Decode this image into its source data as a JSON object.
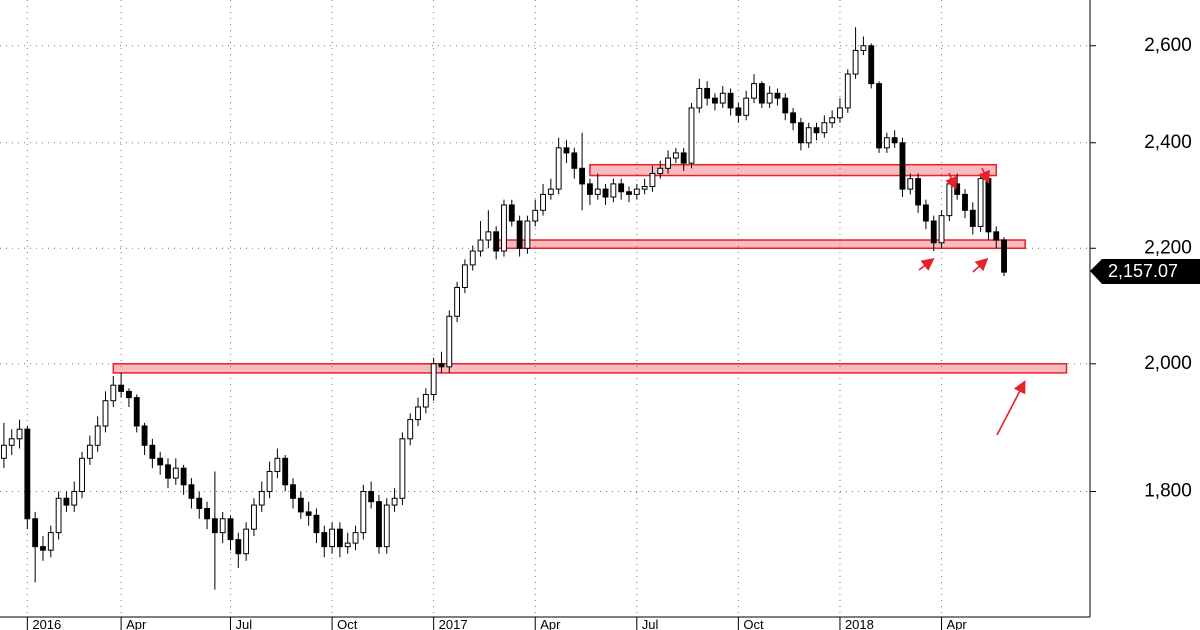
{
  "chart_data": {
    "type": "candlestick",
    "log_scale": true,
    "grid": true,
    "up_color": "#ffffff",
    "down_color": "#000000",
    "band_color": "#e8202a",
    "xlim": [
      -0.5,
      139
    ],
    "ylim": [
      1623,
      2700
    ],
    "xticks": [
      {
        "value": 3,
        "label": "2016"
      },
      {
        "value": 15,
        "label": "Apr"
      },
      {
        "value": 29,
        "label": "Jul"
      },
      {
        "value": 42,
        "label": "Oct"
      },
      {
        "value": 55,
        "label": "2017"
      },
      {
        "value": 68,
        "label": "Apr"
      },
      {
        "value": 81,
        "label": "Jul"
      },
      {
        "value": 94,
        "label": "Oct"
      },
      {
        "value": 107,
        "label": "2018"
      },
      {
        "value": 120,
        "label": "Apr"
      }
    ],
    "yticks": [
      {
        "value": 1800,
        "label": "1,800"
      },
      {
        "value": 2000,
        "label": "2,000"
      },
      {
        "value": 2200,
        "label": "2,200"
      },
      {
        "value": 2400,
        "label": "2,400"
      },
      {
        "value": 2600,
        "label": "2,600"
      }
    ],
    "open": [
      1850,
      1870,
      1880,
      1895,
      1760,
      1720,
      1715,
      1740,
      1790,
      1780,
      1800,
      1850,
      1870,
      1900,
      1940,
      1965,
      1955,
      1945,
      1900,
      1870,
      1850,
      1840,
      1820,
      1835,
      1810,
      1790,
      1775,
      1760,
      1740,
      1760,
      1730,
      1710,
      1745,
      1780,
      1800,
      1830,
      1850,
      1810,
      1790,
      1770,
      1765,
      1740,
      1720,
      1745,
      1720,
      1725,
      1740,
      1800,
      1785,
      1720,
      1780,
      1790,
      1880,
      1910,
      1930,
      1950,
      2000,
      1995,
      2080,
      2130,
      2170,
      2195,
      2215,
      2230,
      2195,
      2280,
      2250,
      2200,
      2250,
      2270,
      2300,
      2310,
      2390,
      2380,
      2350,
      2320,
      2300,
      2310,
      2295,
      2320,
      2305,
      2300,
      2310,
      2315,
      2340,
      2350,
      2370,
      2380,
      2360,
      2470,
      2510,
      2490,
      2480,
      2500,
      2470,
      2455,
      2490,
      2520,
      2480,
      2500,
      2490,
      2460,
      2440,
      2400,
      2430,
      2420,
      2440,
      2450,
      2470,
      2540,
      2590,
      2600,
      2520,
      2390,
      2410,
      2400,
      2310,
      2330,
      2280,
      2250,
      2210,
      2260,
      2320,
      2300,
      2270,
      2240,
      2330,
      2230,
      2215
    ],
    "high": [
      1905,
      1895,
      1910,
      1900,
      1770,
      1735,
      1750,
      1800,
      1800,
      1815,
      1860,
      1885,
      1915,
      1955,
      1980,
      1985,
      1960,
      1950,
      1905,
      1880,
      1860,
      1850,
      1850,
      1840,
      1820,
      1800,
      1785,
      1830,
      1770,
      1765,
      1740,
      1755,
      1790,
      1815,
      1845,
      1865,
      1855,
      1820,
      1800,
      1785,
      1775,
      1750,
      1755,
      1755,
      1740,
      1750,
      1810,
      1815,
      1795,
      1790,
      1805,
      1890,
      1920,
      1945,
      1960,
      2010,
      2020,
      2090,
      2140,
      2180,
      2205,
      2250,
      2270,
      2240,
      2290,
      2290,
      2260,
      2260,
      2290,
      2320,
      2330,
      2410,
      2405,
      2390,
      2420,
      2330,
      2340,
      2320,
      2330,
      2330,
      2315,
      2320,
      2330,
      2355,
      2365,
      2385,
      2390,
      2390,
      2480,
      2530,
      2525,
      2500,
      2515,
      2510,
      2480,
      2505,
      2540,
      2525,
      2515,
      2510,
      2500,
      2470,
      2450,
      2440,
      2440,
      2455,
      2465,
      2490,
      2550,
      2640,
      2620,
      2605,
      2525,
      2420,
      2425,
      2410,
      2340,
      2340,
      2290,
      2260,
      2270,
      2330,
      2340,
      2310,
      2285,
      2340,
      2335,
      2240,
      2220
    ],
    "low": [
      1835,
      1855,
      1865,
      1745,
      1670,
      1700,
      1705,
      1730,
      1770,
      1770,
      1790,
      1840,
      1860,
      1890,
      1930,
      1945,
      1930,
      1890,
      1855,
      1835,
      1825,
      1805,
      1810,
      1795,
      1775,
      1760,
      1745,
      1660,
      1725,
      1715,
      1690,
      1700,
      1735,
      1770,
      1790,
      1820,
      1800,
      1775,
      1760,
      1750,
      1725,
      1705,
      1710,
      1705,
      1710,
      1715,
      1730,
      1775,
      1710,
      1710,
      1770,
      1780,
      1870,
      1900,
      1920,
      1940,
      1985,
      1985,
      2070,
      2120,
      2160,
      2185,
      2200,
      2180,
      2185,
      2240,
      2185,
      2190,
      2240,
      2260,
      2290,
      2300,
      2360,
      2330,
      2270,
      2280,
      2290,
      2280,
      2285,
      2290,
      2285,
      2290,
      2300,
      2305,
      2330,
      2340,
      2360,
      2345,
      2350,
      2460,
      2475,
      2465,
      2470,
      2455,
      2440,
      2445,
      2480,
      2470,
      2470,
      2475,
      2445,
      2425,
      2385,
      2390,
      2405,
      2410,
      2430,
      2440,
      2460,
      2530,
      2580,
      2510,
      2380,
      2380,
      2390,
      2295,
      2300,
      2265,
      2235,
      2195,
      2200,
      2250,
      2290,
      2255,
      2225,
      2230,
      2215,
      2200,
      2150
    ],
    "close": [
      1870,
      1880,
      1895,
      1760,
      1720,
      1715,
      1740,
      1790,
      1780,
      1800,
      1850,
      1870,
      1900,
      1940,
      1965,
      1955,
      1945,
      1900,
      1870,
      1850,
      1840,
      1820,
      1835,
      1810,
      1790,
      1775,
      1760,
      1740,
      1760,
      1730,
      1710,
      1745,
      1780,
      1800,
      1830,
      1850,
      1810,
      1790,
      1770,
      1765,
      1740,
      1720,
      1745,
      1720,
      1725,
      1740,
      1800,
      1785,
      1720,
      1780,
      1790,
      1880,
      1910,
      1930,
      1950,
      2000,
      1995,
      2080,
      2130,
      2170,
      2195,
      2215,
      2230,
      2195,
      2280,
      2250,
      2200,
      2250,
      2270,
      2300,
      2310,
      2390,
      2380,
      2350,
      2320,
      2300,
      2310,
      2295,
      2320,
      2305,
      2300,
      2310,
      2315,
      2340,
      2350,
      2370,
      2380,
      2360,
      2470,
      2510,
      2490,
      2480,
      2500,
      2470,
      2455,
      2490,
      2520,
      2480,
      2500,
      2490,
      2460,
      2440,
      2400,
      2430,
      2420,
      2440,
      2450,
      2470,
      2540,
      2590,
      2600,
      2520,
      2390,
      2410,
      2400,
      2310,
      2330,
      2280,
      2250,
      2210,
      2260,
      2320,
      2300,
      2270,
      2240,
      2330,
      2230,
      2215,
      2157.07
    ],
    "last_value_label": "2,157.07",
    "bands": [
      {
        "y": [
          1985,
          2000
        ],
        "x": [
          14,
          136
        ]
      },
      {
        "y": [
          2200,
          2215
        ],
        "x": [
          63,
          130.7
        ]
      },
      {
        "y": [
          2336,
          2357
        ],
        "x": [
          75,
          127
        ]
      }
    ]
  }
}
